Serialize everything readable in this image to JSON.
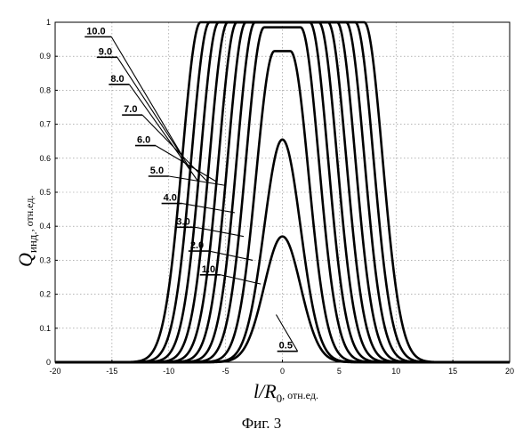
{
  "chart_data": {
    "type": "line",
    "xlim": [
      -20,
      20
    ],
    "ylim": [
      0,
      1
    ],
    "xticks": [
      "-20",
      "-15",
      "-10",
      "-5",
      "0",
      "5",
      "10",
      "15",
      "20"
    ],
    "yticks": [
      "0",
      "0.1",
      "0.2",
      "0.3",
      "0.4",
      "0.5",
      "0.6",
      "0.7",
      "0.8",
      "0.9",
      "1"
    ],
    "grid": true,
    "xlabel": {
      "main": "l/R",
      "sub": "0",
      "units": ", отн.ед."
    },
    "ylabel": {
      "main": "Q",
      "sub": "инд.",
      "units": ", отн.ед."
    },
    "series": [
      {
        "name": "0.5",
        "peak": 0.37,
        "halfwidth": 0.0,
        "label_x": -1.2,
        "label_y": 0.14
      },
      {
        "name": "1.0",
        "peak": 0.655,
        "halfwidth": 0.0,
        "label_x": -1.9,
        "label_y": 0.23
      },
      {
        "name": "2.0",
        "peak": 0.915,
        "halfwidth": 0.7,
        "label_x": -2.6,
        "label_y": 0.3
      },
      {
        "name": "3.0",
        "peak": 0.985,
        "halfwidth": 1.6,
        "label_x": -3.4,
        "label_y": 0.37
      },
      {
        "name": "4.0",
        "peak": 1.0,
        "halfwidth": 2.4,
        "label_x": -4.2,
        "label_y": 0.44
      },
      {
        "name": "5.0",
        "peak": 1.0,
        "halfwidth": 3.2,
        "label_x": -5.0,
        "label_y": 0.52
      },
      {
        "name": "6.0",
        "peak": 1.0,
        "halfwidth": 4.0,
        "label_x": -5.8,
        "label_y": 0.61
      },
      {
        "name": "7.0",
        "peak": 1.0,
        "halfwidth": 4.8,
        "label_x": -6.6,
        "label_y": 0.7
      },
      {
        "name": "8.0",
        "peak": 1.0,
        "halfwidth": 5.6,
        "label_x": -7.4,
        "label_y": 0.79
      },
      {
        "name": "9.0",
        "peak": 1.0,
        "halfwidth": 6.4,
        "label_x": -8.1,
        "label_y": 0.87
      },
      {
        "name": "10.0",
        "peak": 1.0,
        "halfwidth": 7.2,
        "label_x": -8.8,
        "label_y": 0.93
      }
    ],
    "caption": "Фиг. 3"
  }
}
